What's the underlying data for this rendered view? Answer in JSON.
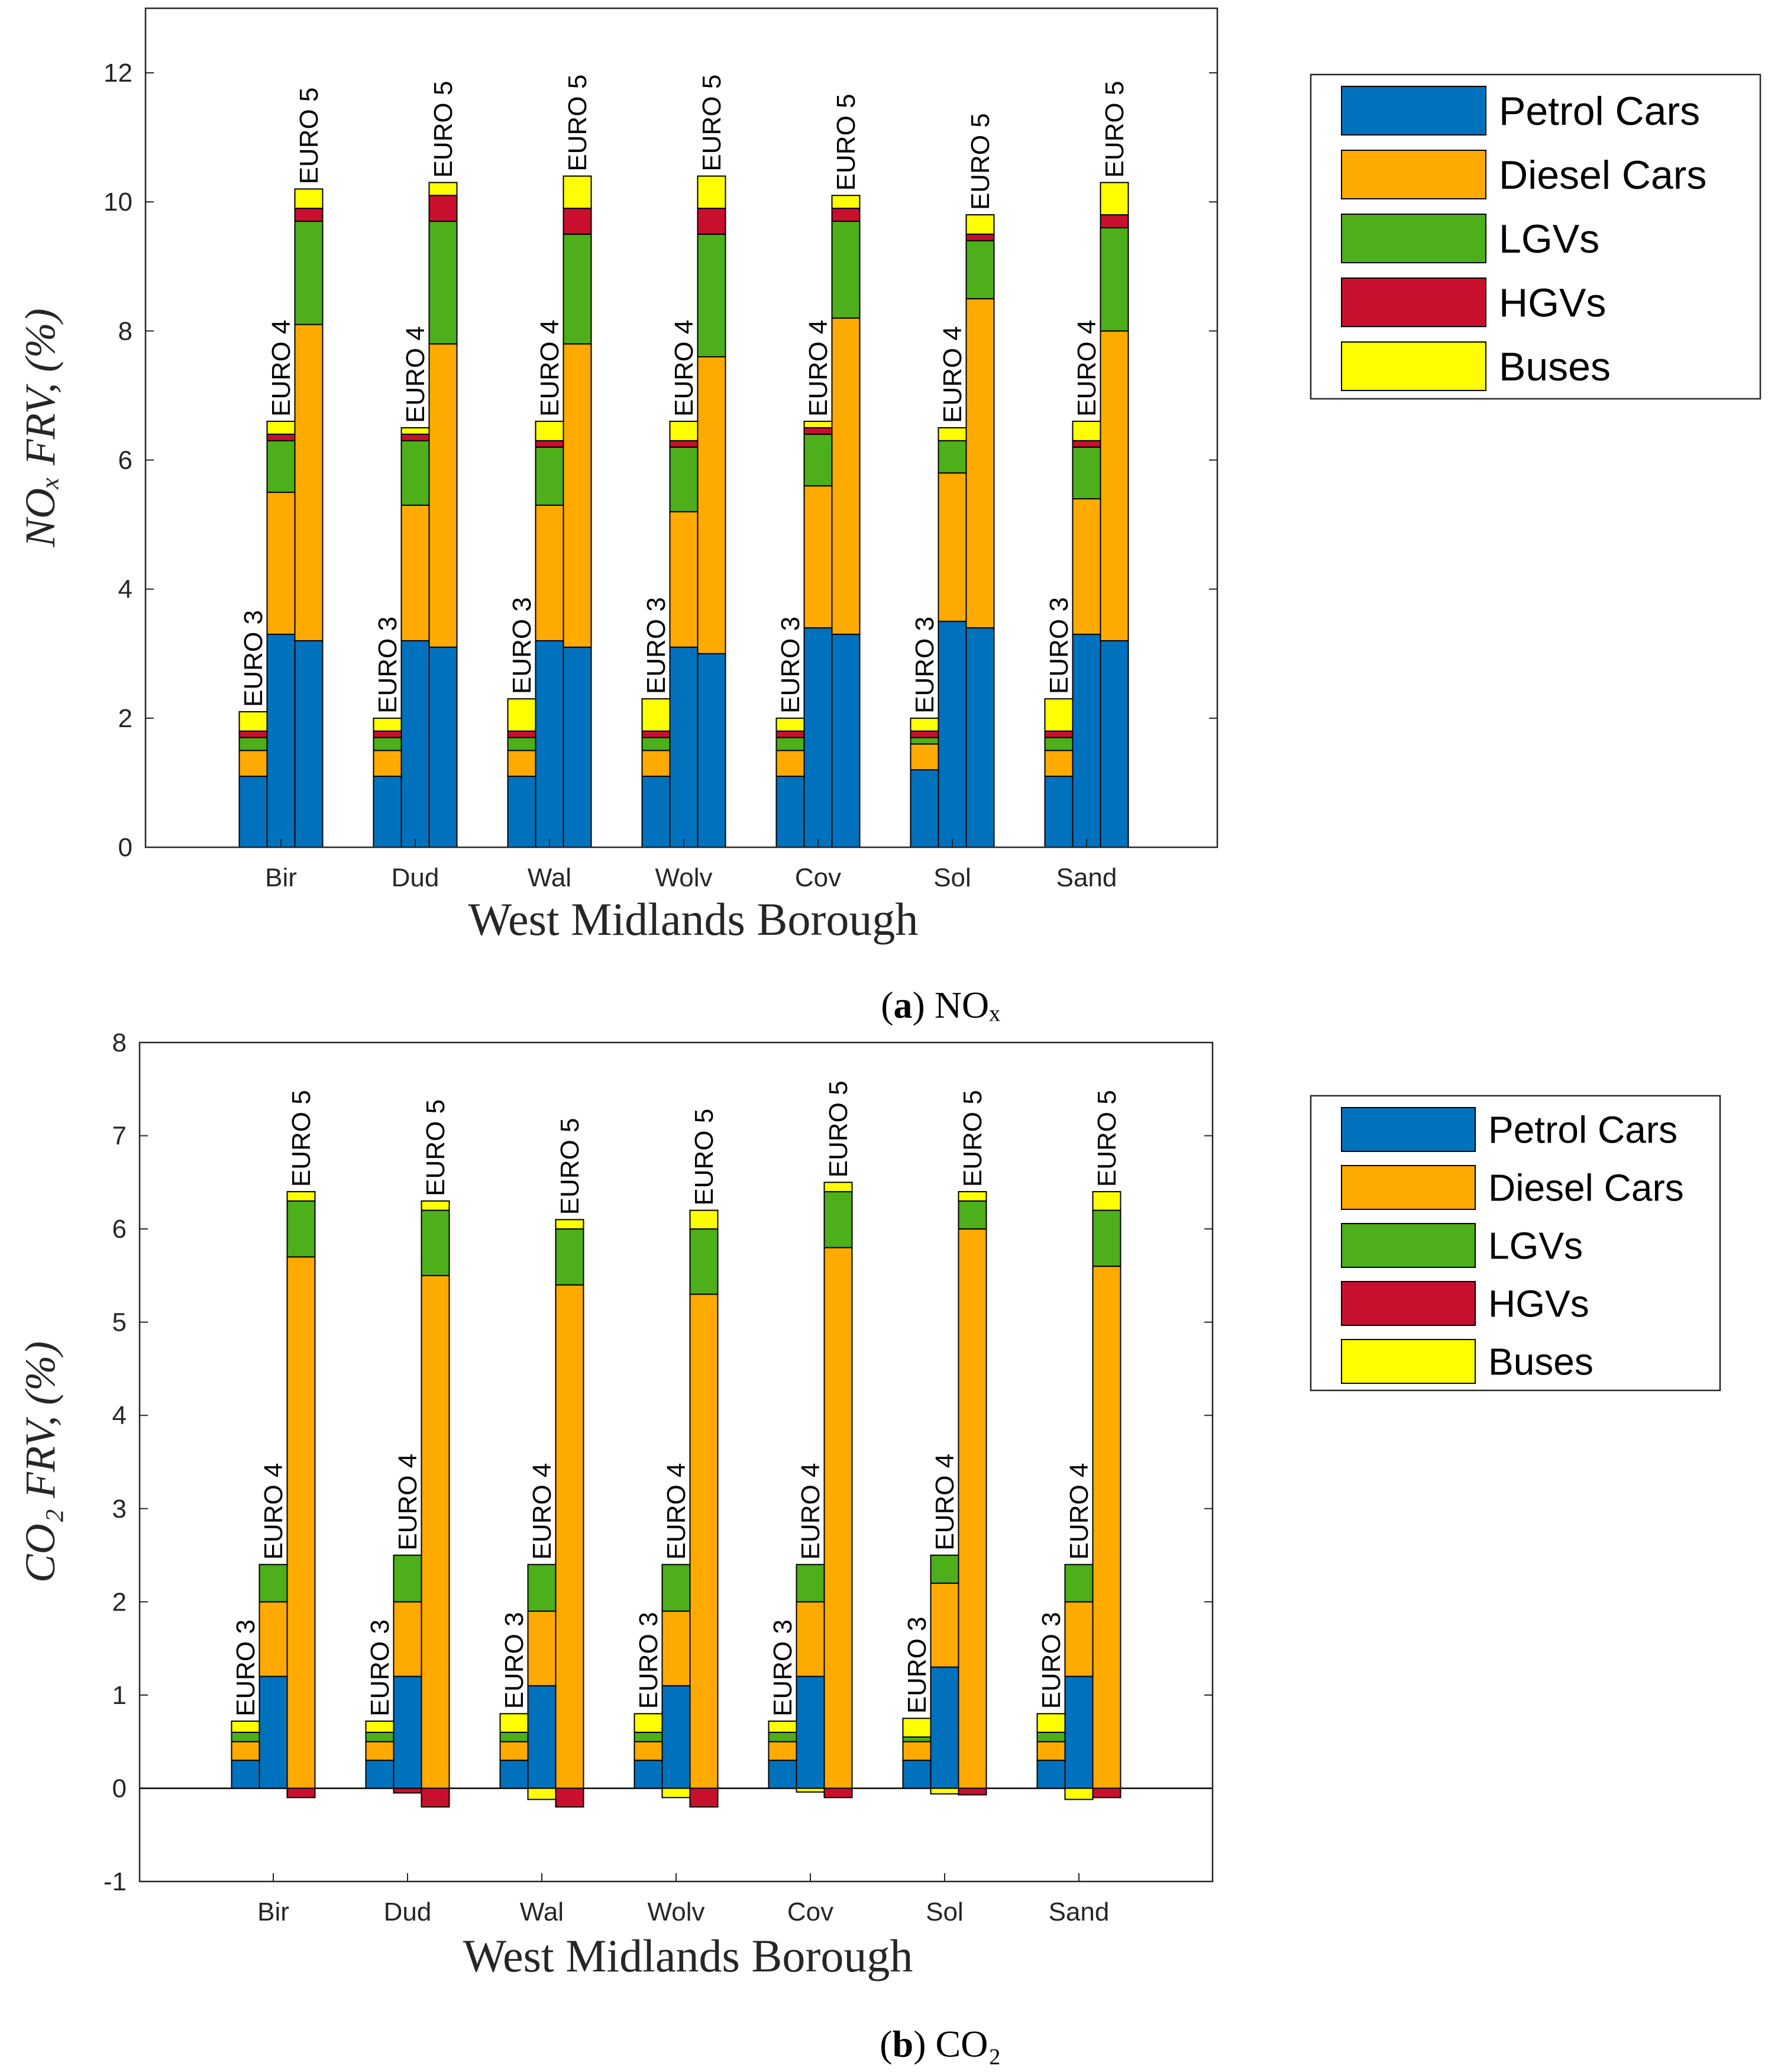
{
  "colors": {
    "petrol": "#0072BD",
    "diesel": "#FFAA00",
    "lgv": "#4DAF1A",
    "hgv": "#C8102E",
    "bus": "#FFFF00"
  },
  "chart_data": [
    {
      "type": "bar",
      "stacked": true,
      "caption_letter": "a",
      "caption_text": "NOₓ",
      "title": "",
      "xlabel": "West Midlands Borough",
      "ylabel": "NOₓ FRV, (%)",
      "ylim": [
        0,
        13
      ],
      "yticks": [
        0,
        2,
        4,
        6,
        8,
        10,
        12
      ],
      "categories": [
        "Bir",
        "Dud",
        "Wal",
        "Wolv",
        "Cov",
        "Sol",
        "Sand"
      ],
      "bar_labels": [
        "EURO 3",
        "EURO 4",
        "EURO 5"
      ],
      "legend": [
        "Petrol Cars",
        "Diesel Cars",
        "LGVs",
        "HGVs",
        "Buses"
      ],
      "legend_position": "outside-right-top",
      "groups": [
        [
          [
            1.1,
            0.4,
            0.2,
            0.1,
            0.3
          ],
          [
            3.3,
            2.2,
            0.8,
            0.1,
            0.2
          ],
          [
            3.2,
            4.9,
            1.6,
            0.2,
            0.3
          ]
        ],
        [
          [
            1.1,
            0.4,
            0.2,
            0.1,
            0.2
          ],
          [
            3.2,
            2.1,
            1.0,
            0.1,
            0.1
          ],
          [
            3.1,
            4.7,
            1.9,
            0.4,
            0.2
          ]
        ],
        [
          [
            1.1,
            0.4,
            0.2,
            0.1,
            0.5
          ],
          [
            3.2,
            2.1,
            0.9,
            0.1,
            0.3
          ],
          [
            3.1,
            4.7,
            1.7,
            0.4,
            0.5
          ]
        ],
        [
          [
            1.1,
            0.4,
            0.2,
            0.1,
            0.5
          ],
          [
            3.1,
            2.1,
            1.0,
            0.1,
            0.3
          ],
          [
            3.0,
            4.6,
            1.9,
            0.4,
            0.5
          ]
        ],
        [
          [
            1.1,
            0.4,
            0.2,
            0.1,
            0.2
          ],
          [
            3.4,
            2.2,
            0.8,
            0.1,
            0.1
          ],
          [
            3.3,
            4.9,
            1.5,
            0.2,
            0.2
          ]
        ],
        [
          [
            1.2,
            0.4,
            0.1,
            0.1,
            0.2
          ],
          [
            3.5,
            2.3,
            0.5,
            0.0,
            0.2
          ],
          [
            3.4,
            5.1,
            0.9,
            0.1,
            0.3
          ]
        ],
        [
          [
            1.1,
            0.4,
            0.2,
            0.1,
            0.5
          ],
          [
            3.3,
            2.1,
            0.8,
            0.1,
            0.3
          ],
          [
            3.2,
            4.8,
            1.6,
            0.2,
            0.5
          ]
        ]
      ]
    },
    {
      "type": "bar",
      "stacked": true,
      "caption_letter": "b",
      "caption_text": "CO₂",
      "title": "",
      "xlabel": "West Midlands Borough",
      "ylabel": "CO₂ FRV, (%)",
      "ylim": [
        -1,
        8
      ],
      "yticks": [
        -1,
        0,
        1,
        2,
        3,
        4,
        5,
        6,
        7,
        8
      ],
      "categories": [
        "Bir",
        "Dud",
        "Wal",
        "Wolv",
        "Cov",
        "Sol",
        "Sand"
      ],
      "bar_labels": [
        "EURO 3",
        "EURO 4",
        "EURO 5"
      ],
      "legend": [
        "Petrol Cars",
        "Diesel Cars",
        "LGVs",
        "HGVs",
        "Buses"
      ],
      "legend_position": "outside-right-top",
      "groups": [
        [
          [
            0.3,
            0.2,
            0.1,
            0,
            0.12
          ],
          [
            1.2,
            0.8,
            0.4,
            0,
            0
          ],
          [
            0,
            5.7,
            0.6,
            -0.1,
            0.1
          ]
        ],
        [
          [
            0.3,
            0.2,
            0.1,
            0,
            0.12
          ],
          [
            1.2,
            0.8,
            0.5,
            -0.05,
            0
          ],
          [
            0,
            5.5,
            0.7,
            -0.2,
            0.1
          ]
        ],
        [
          [
            0.3,
            0.2,
            0.1,
            0,
            0.2
          ],
          [
            1.1,
            0.8,
            0.5,
            0,
            -0.12
          ],
          [
            0,
            5.4,
            0.6,
            -0.2,
            0.1
          ]
        ],
        [
          [
            0.3,
            0.2,
            0.1,
            0,
            0.2
          ],
          [
            1.1,
            0.8,
            0.5,
            0,
            -0.1
          ],
          [
            0,
            5.3,
            0.7,
            -0.2,
            0.2
          ]
        ],
        [
          [
            0.3,
            0.2,
            0.1,
            0,
            0.12
          ],
          [
            1.2,
            0.8,
            0.4,
            0,
            -0.04
          ],
          [
            0,
            5.8,
            0.6,
            -0.1,
            0.1
          ]
        ],
        [
          [
            0.3,
            0.2,
            0.05,
            0,
            0.2
          ],
          [
            1.3,
            0.9,
            0.3,
            0,
            -0.06
          ],
          [
            0,
            6.0,
            0.3,
            -0.07,
            0.1
          ]
        ],
        [
          [
            0.3,
            0.2,
            0.1,
            0,
            0.2
          ],
          [
            1.2,
            0.8,
            0.4,
            0,
            -0.12
          ],
          [
            0,
            5.6,
            0.6,
            -0.1,
            0.2
          ]
        ]
      ]
    }
  ]
}
